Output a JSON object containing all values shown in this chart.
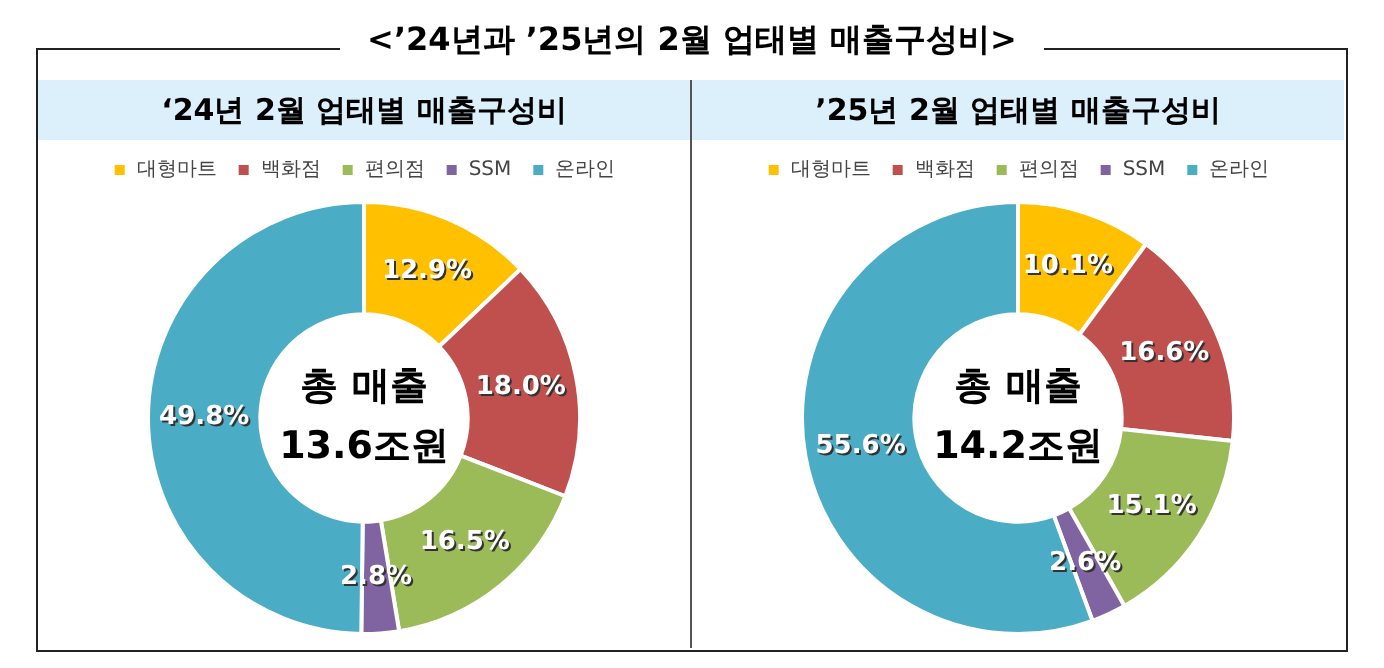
{
  "chart_data": [
    {
      "type": "donut",
      "title": "‘24년 2월 업태별 매출구성비",
      "categories": [
        "대형마트",
        "백화점",
        "편의점",
        "SSM",
        "온라인"
      ],
      "values": [
        12.9,
        18.0,
        16.5,
        2.8,
        49.8
      ],
      "colors": [
        "#ffc000",
        "#c0504d",
        "#9bbb59",
        "#8064a2",
        "#4bacc6"
      ],
      "value_labels": [
        "12.9%",
        "18.0%",
        "16.5%",
        "2.8%",
        "49.8%"
      ],
      "legend": "top",
      "annotations": [
        "<’24년과 ’25년의 2월 업태별 매출구성비>",
        "총 매출",
        "13.6조원"
      ]
    },
    {
      "type": "donut",
      "title": "’25년 2월 업태별 매출구성비",
      "categories": [
        "대형마트",
        "백화점",
        "편의점",
        "SSM",
        "온라인"
      ],
      "values": [
        10.1,
        16.6,
        15.1,
        2.6,
        55.6
      ],
      "colors": [
        "#ffc000",
        "#c0504d",
        "#9bbb59",
        "#8064a2",
        "#4bacc6"
      ],
      "value_labels": [
        "10.1%",
        "16.6%",
        "15.1%",
        "2.6%",
        "55.6%"
      ],
      "legend": "top",
      "annotations": [
        "총 매출",
        "14.2조원"
      ]
    }
  ]
}
